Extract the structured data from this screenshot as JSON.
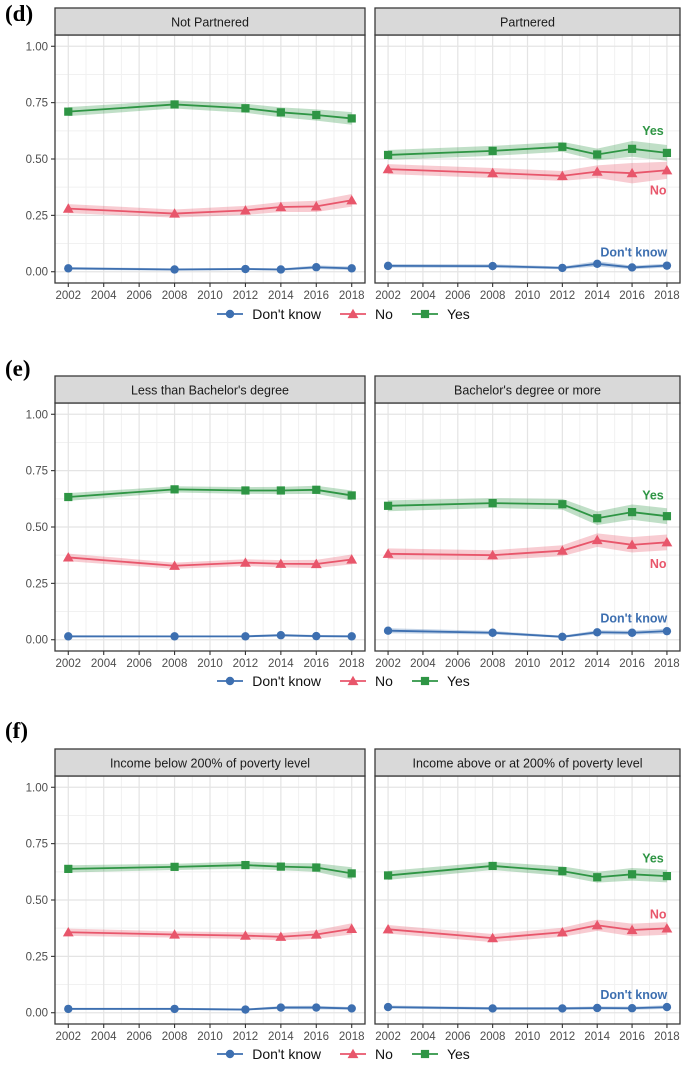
{
  "colors": {
    "dont_know": "#3D6FB0",
    "no": "#E8566B",
    "yes": "#2E9544",
    "strip_bg": "#D9D9D9",
    "panel_border": "#3A3A3A",
    "grid_major": "#E4E4E4",
    "grid_minor": "#F1F1F1",
    "axis_text": "#4D4D4D",
    "tick": "#333333"
  },
  "legend": {
    "items": [
      {
        "label": "Don't know",
        "marker": "circle",
        "color": "#3D6FB0"
      },
      {
        "label": "No",
        "marker": "triangle",
        "color": "#E8566B"
      },
      {
        "label": "Yes",
        "marker": "square",
        "color": "#2E9544"
      }
    ]
  },
  "chart_data": {
    "type": "line",
    "x": [
      2002,
      2008,
      2012,
      2014,
      2016,
      2018
    ],
    "x_ticks": [
      2002,
      2004,
      2006,
      2008,
      2010,
      2012,
      2014,
      2016,
      2018
    ],
    "y_ticks": [
      "0.00",
      "0.25",
      "0.50",
      "0.75",
      "1.00"
    ],
    "y_tick_values": [
      0,
      0.25,
      0.5,
      0.75,
      1.0
    ],
    "ylim": [
      0,
      1
    ],
    "grid": true,
    "legend_position": "bottom",
    "panels": [
      {
        "label": "(d)",
        "facets": [
          {
            "title": "Not Partnered",
            "series": [
              {
                "name": "Don't know",
                "marker": "circle",
                "color": "#3D6FB0",
                "values": [
                  0.015,
                  0.01,
                  0.012,
                  0.01,
                  0.02,
                  0.015
                ],
                "ci": [
                  0.006,
                  0.005,
                  0.005,
                  0.005,
                  0.008,
                  0.008
                ]
              },
              {
                "name": "No",
                "marker": "triangle",
                "color": "#E8566B",
                "values": [
                  0.28,
                  0.258,
                  0.272,
                  0.287,
                  0.29,
                  0.317
                ],
                "ci": [
                  0.02,
                  0.018,
                  0.02,
                  0.022,
                  0.025,
                  0.028
                ]
              },
              {
                "name": "Yes",
                "marker": "square",
                "color": "#2E9544",
                "values": [
                  0.71,
                  0.742,
                  0.725,
                  0.707,
                  0.695,
                  0.68
                ],
                "ci": [
                  0.02,
                  0.018,
                  0.02,
                  0.022,
                  0.025,
                  0.028
                ]
              }
            ],
            "annotations": []
          },
          {
            "title": "Partnered",
            "series": [
              {
                "name": "Don't know",
                "marker": "circle",
                "color": "#3D6FB0",
                "values": [
                  0.026,
                  0.025,
                  0.017,
                  0.035,
                  0.019,
                  0.027
                ],
                "ci": [
                  0.008,
                  0.008,
                  0.006,
                  0.012,
                  0.008,
                  0.009
                ]
              },
              {
                "name": "No",
                "marker": "triangle",
                "color": "#E8566B",
                "values": [
                  0.455,
                  0.438,
                  0.425,
                  0.444,
                  0.437,
                  0.45
                ],
                "ci": [
                  0.022,
                  0.022,
                  0.022,
                  0.028,
                  0.045,
                  0.038
                ]
              },
              {
                "name": "Yes",
                "marker": "square",
                "color": "#2E9544",
                "values": [
                  0.518,
                  0.536,
                  0.554,
                  0.52,
                  0.545,
                  0.527
                ],
                "ci": [
                  0.022,
                  0.022,
                  0.022,
                  0.026,
                  0.035,
                  0.035
                ]
              }
            ],
            "annotations": [
              {
                "label": "Yes",
                "x": 2017.2,
                "y": 0.625,
                "color": "#2E9544"
              },
              {
                "label": "No",
                "x": 2017.5,
                "y": 0.36,
                "color": "#E8566B"
              },
              {
                "label": "Don't know",
                "x": 2016.1,
                "y": 0.085,
                "color": "#3D6FB0"
              }
            ]
          }
        ]
      },
      {
        "label": "(e)",
        "facets": [
          {
            "title": "Less than Bachelor's degree",
            "series": [
              {
                "name": "Don't know",
                "marker": "circle",
                "color": "#3D6FB0",
                "values": [
                  0.015,
                  0.015,
                  0.015,
                  0.02,
                  0.016,
                  0.015
                ],
                "ci": [
                  0.005,
                  0.004,
                  0.004,
                  0.006,
                  0.005,
                  0.005
                ]
              },
              {
                "name": "No",
                "marker": "triangle",
                "color": "#E8566B",
                "values": [
                  0.365,
                  0.328,
                  0.342,
                  0.337,
                  0.336,
                  0.356
                ],
                "ci": [
                  0.017,
                  0.014,
                  0.015,
                  0.016,
                  0.018,
                  0.022
                ]
              },
              {
                "name": "Yes",
                "marker": "square",
                "color": "#2E9544",
                "values": [
                  0.633,
                  0.667,
                  0.662,
                  0.662,
                  0.665,
                  0.64
                ],
                "ci": [
                  0.017,
                  0.014,
                  0.015,
                  0.016,
                  0.018,
                  0.022
                ]
              }
            ],
            "annotations": []
          },
          {
            "title": "Bachelor's degree or more",
            "series": [
              {
                "name": "Don't know",
                "marker": "circle",
                "color": "#3D6FB0",
                "values": [
                  0.04,
                  0.031,
                  0.013,
                  0.033,
                  0.031,
                  0.038
                ],
                "ci": [
                  0.011,
                  0.008,
                  0.005,
                  0.009,
                  0.009,
                  0.011
                ]
              },
              {
                "name": "No",
                "marker": "triangle",
                "color": "#E8566B",
                "values": [
                  0.381,
                  0.375,
                  0.395,
                  0.442,
                  0.421,
                  0.432
                ],
                "ci": [
                  0.024,
                  0.022,
                  0.024,
                  0.03,
                  0.034,
                  0.035
                ]
              },
              {
                "name": "Yes",
                "marker": "square",
                "color": "#2E9544",
                "values": [
                  0.594,
                  0.606,
                  0.601,
                  0.539,
                  0.566,
                  0.548
                ],
                "ci": [
                  0.024,
                  0.022,
                  0.024,
                  0.03,
                  0.034,
                  0.035
                ]
              }
            ],
            "annotations": [
              {
                "label": "Yes",
                "x": 2017.2,
                "y": 0.64,
                "color": "#2E9544"
              },
              {
                "label": "No",
                "x": 2017.5,
                "y": 0.335,
                "color": "#E8566B"
              },
              {
                "label": "Don't know",
                "x": 2016.1,
                "y": 0.095,
                "color": "#3D6FB0"
              }
            ]
          }
        ]
      },
      {
        "label": "(f)",
        "facets": [
          {
            "title": "Income below 200% of poverty level",
            "series": [
              {
                "name": "Don't know",
                "marker": "circle",
                "color": "#3D6FB0",
                "values": [
                  0.017,
                  0.017,
                  0.014,
                  0.023,
                  0.023,
                  0.019
                ],
                "ci": [
                  0.005,
                  0.005,
                  0.004,
                  0.007,
                  0.008,
                  0.006
                ]
              },
              {
                "name": "No",
                "marker": "triangle",
                "color": "#E8566B",
                "values": [
                  0.357,
                  0.347,
                  0.342,
                  0.337,
                  0.347,
                  0.372
                ],
                "ci": [
                  0.016,
                  0.014,
                  0.015,
                  0.016,
                  0.019,
                  0.025
                ]
              },
              {
                "name": "Yes",
                "marker": "square",
                "color": "#2E9544",
                "values": [
                  0.638,
                  0.647,
                  0.655,
                  0.648,
                  0.644,
                  0.618
                ],
                "ci": [
                  0.016,
                  0.014,
                  0.016,
                  0.016,
                  0.019,
                  0.027
                ]
              }
            ],
            "annotations": []
          },
          {
            "title": "Income above or at 200% of poverty level",
            "series": [
              {
                "name": "Don't know",
                "marker": "circle",
                "color": "#3D6FB0",
                "values": [
                  0.025,
                  0.019,
                  0.019,
                  0.021,
                  0.02,
                  0.025
                ],
                "ci": [
                  0.007,
                  0.006,
                  0.006,
                  0.007,
                  0.007,
                  0.008
                ]
              },
              {
                "name": "No",
                "marker": "triangle",
                "color": "#E8566B",
                "values": [
                  0.37,
                  0.331,
                  0.357,
                  0.388,
                  0.367,
                  0.374
                ],
                "ci": [
                  0.019,
                  0.018,
                  0.02,
                  0.025,
                  0.028,
                  0.028
                ]
              },
              {
                "name": "Yes",
                "marker": "square",
                "color": "#2E9544",
                "values": [
                  0.609,
                  0.651,
                  0.628,
                  0.601,
                  0.614,
                  0.606
                ],
                "ci": [
                  0.02,
                  0.018,
                  0.021,
                  0.024,
                  0.028,
                  0.028
                ]
              }
            ],
            "annotations": [
              {
                "label": "Yes",
                "x": 2017.2,
                "y": 0.685,
                "color": "#2E9544"
              },
              {
                "label": "No",
                "x": 2017.5,
                "y": 0.435,
                "color": "#E8566B"
              },
              {
                "label": "Don't know",
                "x": 2016.1,
                "y": 0.078,
                "color": "#3D6FB0"
              }
            ]
          }
        ]
      }
    ]
  }
}
